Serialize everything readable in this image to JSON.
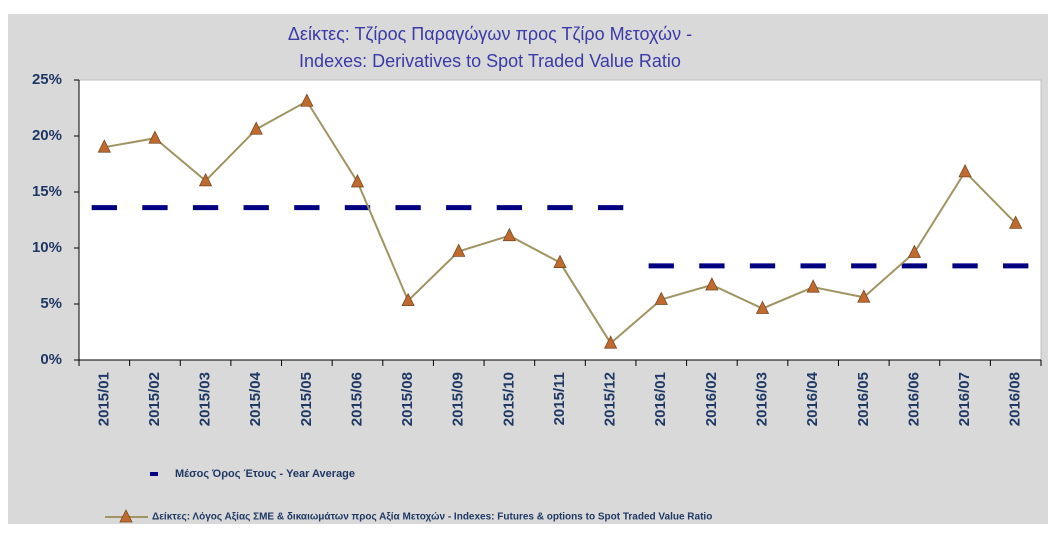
{
  "chart_data": {
    "type": "line",
    "title": "Δείκτες: Τζίρος Παραγώγων προς Τζίρο Μετοχών -",
    "subtitle": "Indexes: Derivatives to Spot Traded Value Ratio",
    "categories": [
      "2015/01",
      "2015/02",
      "2015/03",
      "2015/04",
      "2015/05",
      "2015/06",
      "2015/08",
      "2015/09",
      "2015/10",
      "2015/11",
      "2015/12",
      "2016/01",
      "2016/02",
      "2016/03",
      "2016/04",
      "2016/05",
      "2016/06",
      "2016/07",
      "2016/08"
    ],
    "series": [
      {
        "name": "Μέσος Όρος Έτους - Year Average",
        "color": "#000080",
        "style": "dash",
        "values": [
          13.6,
          13.6,
          13.6,
          13.6,
          13.6,
          13.6,
          13.6,
          13.6,
          13.6,
          13.6,
          13.6,
          8.4,
          8.4,
          8.4,
          8.4,
          8.4,
          8.4,
          8.4,
          8.4
        ]
      },
      {
        "name": "Δείκτες: Λόγος Αξίας ΣΜΕ & δικαιωμάτων προς Αξία Μετοχών - Indexes: Futures & options to Spot Traded Value Ratio",
        "color": "#a09462",
        "marker_color": "#c06a30",
        "style": "line",
        "values": [
          19.0,
          19.8,
          16.0,
          20.6,
          23.1,
          15.9,
          5.3,
          9.7,
          11.1,
          8.7,
          1.5,
          5.4,
          6.7,
          4.6,
          6.5,
          5.6,
          9.6,
          16.8,
          12.2
        ]
      }
    ],
    "ylim": [
      0,
      25
    ],
    "yticks": [
      {
        "value": 0,
        "label": "0%"
      },
      {
        "value": 5,
        "label": "5%"
      },
      {
        "value": 10,
        "label": "10%"
      },
      {
        "value": 15,
        "label": "15%"
      },
      {
        "value": 20,
        "label": "20%"
      },
      {
        "value": 25,
        "label": "25%"
      }
    ]
  }
}
